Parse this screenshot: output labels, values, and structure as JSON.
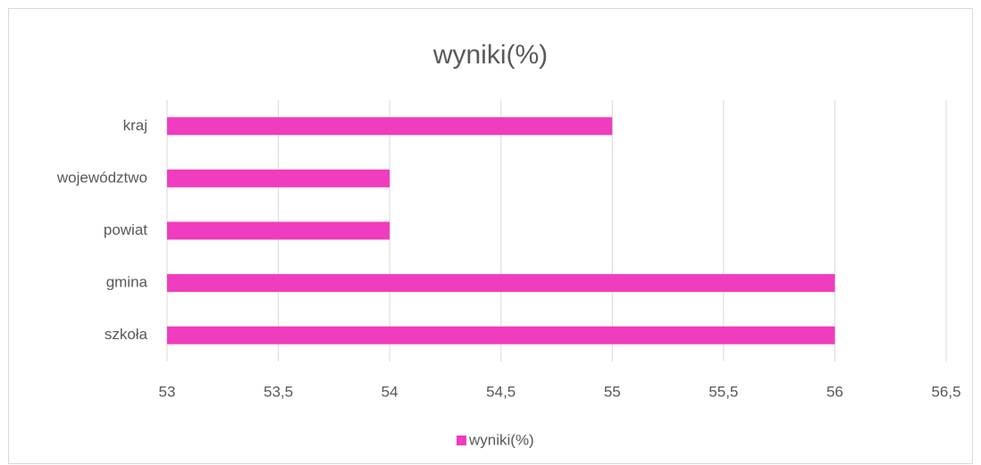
{
  "chart_data": {
    "type": "bar",
    "orientation": "horizontal",
    "title": "wyniki(%)",
    "categories": [
      "kraj",
      "województwo",
      "powiat",
      "gmina",
      "szkoła"
    ],
    "series": [
      {
        "name": "wyniki(%)",
        "color": "#f03cbf",
        "values": [
          55,
          54,
          54,
          56,
          56
        ]
      }
    ],
    "xlim": [
      53,
      56.5
    ],
    "xticks": [
      53,
      {
        "value": 53.5,
        "label": "53,5"
      },
      54,
      {
        "value": 54.5,
        "label": "54,5"
      },
      55,
      {
        "value": 55.5,
        "label": "55,5"
      },
      56,
      {
        "value": 56.5,
        "label": "56,5"
      }
    ],
    "grid": true,
    "legend": "bottom"
  }
}
